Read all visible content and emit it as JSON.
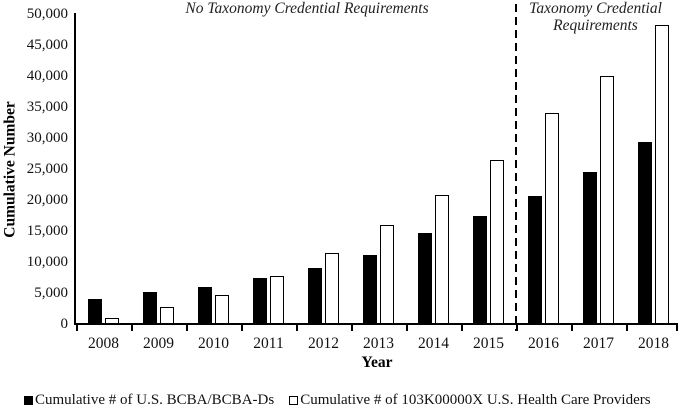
{
  "chart_data": {
    "type": "bar",
    "title": "",
    "xlabel": "Year",
    "ylabel": "Cumulative Number",
    "ylim": [
      0,
      50000
    ],
    "ytick_step": 5000,
    "ytick_labels": [
      "0",
      "5,000",
      "10,000",
      "15,000",
      "20,000",
      "25,000",
      "30,000",
      "35,000",
      "40,000",
      "45,000",
      "50,000"
    ],
    "grid": false,
    "legend_position": "bottom",
    "categories": [
      "2008",
      "2009",
      "2010",
      "2011",
      "2012",
      "2013",
      "2014",
      "2015",
      "2016",
      "2017",
      "2018"
    ],
    "series": [
      {
        "name": "Cumulative # of U.S. BCBA/BCBA-Ds",
        "style": "solid-black",
        "values": [
          4000,
          5100,
          6000,
          7400,
          9100,
          11100,
          14600,
          17500,
          20700,
          24500,
          29300
        ]
      },
      {
        "name": "Cumulative # of 103K00000X U.S. Health Care Providers",
        "style": "white-outlined",
        "values": [
          1000,
          2700,
          4700,
          7700,
          11500,
          16000,
          20800,
          26500,
          34000,
          40000,
          48200
        ]
      }
    ],
    "annotations": {
      "left_region_label": "No Taxonomy Credential Requirements",
      "right_region_label_line1": "Taxonomy Credential",
      "right_region_label_line2": "Requirements",
      "divider_position": "between 2015 and 2016"
    }
  },
  "colors": {
    "bar_fill_series1": "#000000",
    "bar_fill_series2": "#ffffff",
    "bar_outline": "#000000",
    "axis": "#000000",
    "background": "#ffffff"
  }
}
